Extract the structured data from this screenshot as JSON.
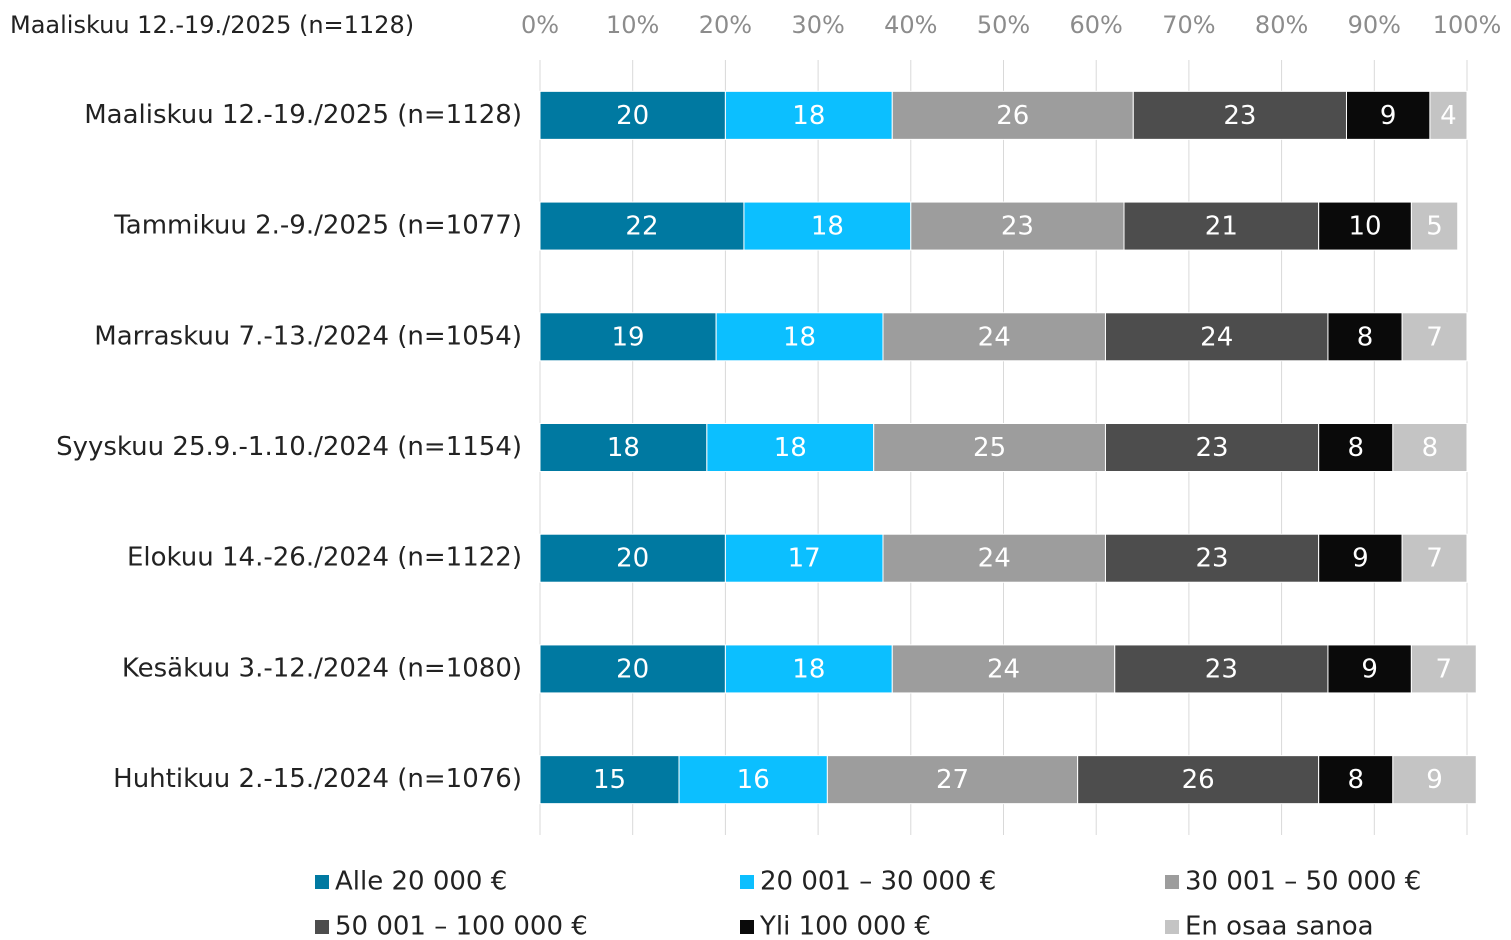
{
  "chart_data": {
    "type": "stacked-bar-horizontal",
    "title": "Maaliskuu 12.-19./2025 (n=1128)",
    "categories": [
      "Maaliskuu 12.-19./2025 (n=1128)",
      "Tammikuu 2.-9./2025 (n=1077)",
      "Marraskuu 7.-13./2024 (n=1054)",
      "Syyskuu 25.9.-1.10./2024 (n=1154)",
      "Elokuu 14.-26./2024 (n=1122)",
      "Kesäkuu 3.-12./2024 (n=1080)",
      "Huhtikuu 2.-15./2024 (n=1076)"
    ],
    "series": [
      {
        "name": "Alle 20 000 €",
        "color": "#0079a1",
        "values": [
          20,
          22,
          19,
          18,
          20,
          20,
          15
        ]
      },
      {
        "name": "20 001 – 30 000 €",
        "color": "#0cbfff",
        "values": [
          18,
          18,
          18,
          18,
          17,
          18,
          16
        ]
      },
      {
        "name": "30 001 – 50 000 €",
        "color": "#9d9d9d",
        "values": [
          26,
          23,
          24,
          25,
          24,
          24,
          27
        ]
      },
      {
        "name": "50 001 – 100 000 €",
        "color": "#4d4d4d",
        "values": [
          23,
          21,
          24,
          23,
          23,
          23,
          26
        ]
      },
      {
        "name": "Yli 100 000 €",
        "color": "#0a0a0a",
        "values": [
          9,
          10,
          8,
          8,
          9,
          9,
          8
        ]
      },
      {
        "name": "En osaa sanoa",
        "color": "#c4c4c4",
        "values": [
          4,
          5,
          7,
          8,
          7,
          7,
          9
        ]
      }
    ],
    "xlim": [
      0,
      100
    ],
    "xticks": [
      {
        "value": 0,
        "label": "0%"
      },
      {
        "value": 10,
        "label": "10%"
      },
      {
        "value": 20,
        "label": "20%"
      },
      {
        "value": 30,
        "label": "30%"
      },
      {
        "value": 40,
        "label": "40%"
      },
      {
        "value": 50,
        "label": "50%"
      },
      {
        "value": 60,
        "label": "60%"
      },
      {
        "value": 70,
        "label": "70%"
      },
      {
        "value": 80,
        "label": "80%"
      },
      {
        "value": 90,
        "label": "90%"
      },
      {
        "value": 100,
        "label": "100%"
      }
    ],
    "grid": true
  }
}
